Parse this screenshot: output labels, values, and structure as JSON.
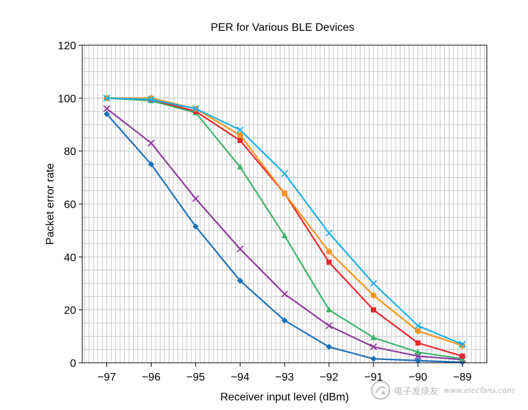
{
  "chart_data": {
    "type": "line",
    "title": "PER for Various BLE Devices",
    "xlabel": "Receiver input level (dBm)",
    "ylabel": "Packet error rate",
    "x": [
      -97,
      -96,
      -95,
      -94,
      -93,
      -92,
      -91,
      -90,
      -89
    ],
    "x_tick_labels": [
      "−97",
      "−96",
      "−95",
      "−94",
      "−93",
      "−92",
      "−91",
      "−90",
      "−89"
    ],
    "ylim": [
      0,
      120
    ],
    "y_ticks": [
      0,
      20,
      40,
      60,
      80,
      100,
      120
    ],
    "grid": true,
    "series": [
      {
        "color": "#1a6fba",
        "marker": "diamond",
        "values": [
          94,
          75,
          51.5,
          31,
          16,
          6,
          1.5,
          0.8,
          0.2
        ]
      },
      {
        "color": "#8e3a9e",
        "marker": "x",
        "values": [
          96,
          83,
          62,
          43,
          26,
          14,
          6,
          2.5,
          1.2
        ]
      },
      {
        "color": "#3db36b",
        "marker": "triangle",
        "values": [
          100,
          99,
          94.5,
          74,
          48,
          20,
          9.5,
          4,
          1.5
        ]
      },
      {
        "color": "#e8262a",
        "marker": "square",
        "values": [
          100,
          99.5,
          95,
          84,
          64,
          38,
          20,
          7.5,
          2.5
        ]
      },
      {
        "color": "#f7941d",
        "marker": "circle",
        "values": [
          100,
          100,
          96,
          86,
          64,
          42,
          25.5,
          12,
          6.5
        ]
      },
      {
        "color": "#1ab0e8",
        "marker": "x",
        "values": [
          100,
          99.5,
          96,
          88,
          71.5,
          49,
          30,
          14,
          7
        ]
      }
    ]
  },
  "watermark": {
    "text": "电子发烧友",
    "url": "www.elecfans.com"
  }
}
